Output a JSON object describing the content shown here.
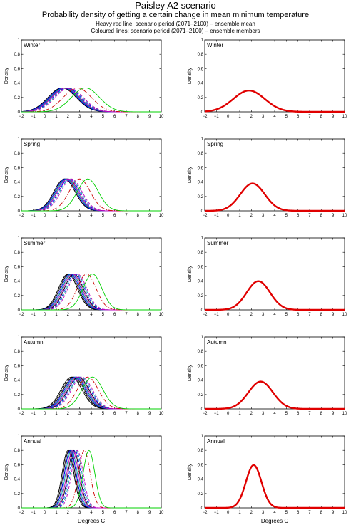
{
  "figure": {
    "title": "Paisley A2 scenario",
    "subtitle": "Probability density of getting a certain change in mean minimum temperature",
    "note_heavy": "Heavy red line: scenario period (2071–2100) – ensemble mean",
    "note_coloured": "Coloured lines: scenario period (2071–2100) – ensemble members"
  },
  "axes": {
    "xlabel": "Degrees C",
    "ylabel": "Density",
    "xlim": [
      -2,
      10
    ],
    "ylim": [
      0,
      1
    ],
    "xticks": [
      "−2",
      "−1",
      "0",
      "1",
      "2",
      "3",
      "4",
      "5",
      "6",
      "7",
      "8",
      "9",
      "10"
    ],
    "yticks": [
      "0",
      "0.2",
      "0.4",
      "0.6",
      "0.8",
      "1"
    ]
  },
  "chart_data": [
    {
      "type": "line",
      "panel": "members",
      "season": "Winter",
      "xlim": [
        -2,
        10
      ],
      "ylim": [
        0,
        1
      ],
      "series": [
        {
          "color": "#000000",
          "mean": 1.5,
          "sd": 1.2,
          "dash": ""
        },
        {
          "color": "#000000",
          "mean": 1.6,
          "sd": 1.2,
          "dash": ""
        },
        {
          "color": "#000000",
          "mean": 1.7,
          "sd": 1.2,
          "dash": ""
        },
        {
          "color": "#000000",
          "mean": 1.8,
          "sd": 1.2,
          "dash": ""
        },
        {
          "color": "#000000",
          "mean": 1.5,
          "sd": 1.2,
          "dash": "4,2"
        },
        {
          "color": "#0000ff",
          "mean": 1.6,
          "sd": 1.2,
          "dash": ""
        },
        {
          "color": "#0000ff",
          "mean": 1.9,
          "sd": 1.2,
          "dash": "4,2"
        },
        {
          "color": "#00a0a0",
          "mean": 1.7,
          "sd": 1.2,
          "dash": ""
        },
        {
          "color": "#00a0a0",
          "mean": 2.0,
          "sd": 1.2,
          "dash": "4,2"
        },
        {
          "color": "#c000c0",
          "mean": 1.8,
          "sd": 1.2,
          "dash": ""
        },
        {
          "color": "#c000c0",
          "mean": 2.1,
          "sd": 1.2,
          "dash": "4,2"
        },
        {
          "color": "#cc0000",
          "mean": 2.8,
          "sd": 1.2,
          "dash": "6,2,1,2"
        },
        {
          "color": "#00d000",
          "mean": 3.5,
          "sd": 1.2,
          "dash": ""
        }
      ]
    },
    {
      "type": "line",
      "panel": "mean",
      "season": "Winter",
      "xlim": [
        -2,
        10
      ],
      "ylim": [
        0,
        1
      ],
      "series": [
        {
          "color": "#e00000",
          "mean": 1.8,
          "sd": 1.35,
          "dash": ""
        }
      ]
    },
    {
      "type": "line",
      "panel": "members",
      "season": "Spring",
      "xlim": [
        -2,
        10
      ],
      "ylim": [
        0,
        1
      ],
      "series": [
        {
          "color": "#000000",
          "mean": 1.7,
          "sd": 0.9,
          "dash": ""
        },
        {
          "color": "#000000",
          "mean": 1.8,
          "sd": 0.9,
          "dash": ""
        },
        {
          "color": "#000000",
          "mean": 1.9,
          "sd": 0.9,
          "dash": ""
        },
        {
          "color": "#000000",
          "mean": 2.0,
          "sd": 0.9,
          "dash": ""
        },
        {
          "color": "#000000",
          "mean": 1.7,
          "sd": 0.9,
          "dash": "4,2"
        },
        {
          "color": "#0000ff",
          "mean": 1.8,
          "sd": 0.9,
          "dash": ""
        },
        {
          "color": "#0000ff",
          "mean": 2.1,
          "sd": 0.9,
          "dash": "4,2"
        },
        {
          "color": "#00a0a0",
          "mean": 1.9,
          "sd": 0.9,
          "dash": ""
        },
        {
          "color": "#00a0a0",
          "mean": 2.2,
          "sd": 0.9,
          "dash": "4,2"
        },
        {
          "color": "#c000c0",
          "mean": 2.0,
          "sd": 0.9,
          "dash": ""
        },
        {
          "color": "#c000c0",
          "mean": 2.3,
          "sd": 0.9,
          "dash": "4,2"
        },
        {
          "color": "#cc0000",
          "mean": 3.0,
          "sd": 0.9,
          "dash": "6,2,1,2"
        },
        {
          "color": "#00d000",
          "mean": 3.7,
          "sd": 0.9,
          "dash": ""
        }
      ]
    },
    {
      "type": "line",
      "panel": "mean",
      "season": "Spring",
      "xlim": [
        -2,
        10
      ],
      "ylim": [
        0,
        1
      ],
      "series": [
        {
          "color": "#e00000",
          "mean": 2.1,
          "sd": 1.05,
          "dash": ""
        }
      ]
    },
    {
      "type": "line",
      "panel": "members",
      "season": "Summer",
      "xlim": [
        -2,
        10
      ],
      "ylim": [
        0,
        1
      ],
      "series": [
        {
          "color": "#000000",
          "mean": 2.0,
          "sd": 0.8,
          "dash": ""
        },
        {
          "color": "#000000",
          "mean": 2.1,
          "sd": 0.8,
          "dash": ""
        },
        {
          "color": "#000000",
          "mean": 2.3,
          "sd": 0.8,
          "dash": ""
        },
        {
          "color": "#000000",
          "mean": 2.5,
          "sd": 0.8,
          "dash": ""
        },
        {
          "color": "#000000",
          "mean": 2.0,
          "sd": 0.8,
          "dash": "4,2"
        },
        {
          "color": "#0000ff",
          "mean": 2.2,
          "sd": 0.8,
          "dash": ""
        },
        {
          "color": "#0000ff",
          "mean": 2.6,
          "sd": 0.8,
          "dash": "4,2"
        },
        {
          "color": "#00a0a0",
          "mean": 2.3,
          "sd": 0.8,
          "dash": ""
        },
        {
          "color": "#00a0a0",
          "mean": 2.7,
          "sd": 0.8,
          "dash": "4,2"
        },
        {
          "color": "#c000c0",
          "mean": 2.4,
          "sd": 0.8,
          "dash": ""
        },
        {
          "color": "#c000c0",
          "mean": 2.8,
          "sd": 0.8,
          "dash": "4,2"
        },
        {
          "color": "#cc0000",
          "mean": 3.6,
          "sd": 0.8,
          "dash": "6,2,1,2"
        },
        {
          "color": "#00d000",
          "mean": 4.1,
          "sd": 0.8,
          "dash": ""
        }
      ]
    },
    {
      "type": "line",
      "panel": "mean",
      "season": "Summer",
      "xlim": [
        -2,
        10
      ],
      "ylim": [
        0,
        1
      ],
      "series": [
        {
          "color": "#e00000",
          "mean": 2.6,
          "sd": 1.0,
          "dash": ""
        }
      ]
    },
    {
      "type": "line",
      "panel": "members",
      "season": "Autumn",
      "xlim": [
        -2,
        10
      ],
      "ylim": [
        0,
        1
      ],
      "series": [
        {
          "color": "#000000",
          "mean": 2.3,
          "sd": 0.9,
          "dash": ""
        },
        {
          "color": "#000000",
          "mean": 2.5,
          "sd": 0.9,
          "dash": ""
        },
        {
          "color": "#000000",
          "mean": 2.7,
          "sd": 0.9,
          "dash": ""
        },
        {
          "color": "#000000",
          "mean": 2.9,
          "sd": 0.9,
          "dash": ""
        },
        {
          "color": "#000000",
          "mean": 2.4,
          "sd": 0.9,
          "dash": "4,2"
        },
        {
          "color": "#0000ff",
          "mean": 2.6,
          "sd": 0.9,
          "dash": ""
        },
        {
          "color": "#0000ff",
          "mean": 3.0,
          "sd": 0.9,
          "dash": "4,2"
        },
        {
          "color": "#00a0a0",
          "mean": 2.7,
          "sd": 0.9,
          "dash": ""
        },
        {
          "color": "#00a0a0",
          "mean": 3.1,
          "sd": 0.9,
          "dash": "4,2"
        },
        {
          "color": "#c000c0",
          "mean": 2.8,
          "sd": 0.9,
          "dash": ""
        },
        {
          "color": "#c000c0",
          "mean": 3.2,
          "sd": 0.9,
          "dash": "4,2"
        },
        {
          "color": "#cc0000",
          "mean": 3.7,
          "sd": 0.9,
          "dash": "6,2,1,2"
        },
        {
          "color": "#00d000",
          "mean": 4.1,
          "sd": 0.9,
          "dash": ""
        }
      ]
    },
    {
      "type": "line",
      "panel": "mean",
      "season": "Autumn",
      "xlim": [
        -2,
        10
      ],
      "ylim": [
        0,
        1
      ],
      "series": [
        {
          "color": "#e00000",
          "mean": 2.8,
          "sd": 1.05,
          "dash": ""
        }
      ]
    },
    {
      "type": "line",
      "panel": "members",
      "season": "Annual",
      "xlim": [
        -2,
        10
      ],
      "ylim": [
        0,
        1
      ],
      "series": [
        {
          "color": "#000000",
          "mean": 2.0,
          "sd": 0.5,
          "dash": ""
        },
        {
          "color": "#000000",
          "mean": 2.1,
          "sd": 0.5,
          "dash": ""
        },
        {
          "color": "#000000",
          "mean": 2.2,
          "sd": 0.5,
          "dash": ""
        },
        {
          "color": "#000000",
          "mean": 2.5,
          "sd": 0.5,
          "dash": ""
        },
        {
          "color": "#000000",
          "mean": 2.0,
          "sd": 0.5,
          "dash": "4,2"
        },
        {
          "color": "#0000ff",
          "mean": 2.2,
          "sd": 0.5,
          "dash": ""
        },
        {
          "color": "#0000ff",
          "mean": 2.6,
          "sd": 0.5,
          "dash": "4,2"
        },
        {
          "color": "#00a0a0",
          "mean": 2.3,
          "sd": 0.5,
          "dash": ""
        },
        {
          "color": "#00a0a0",
          "mean": 2.7,
          "sd": 0.5,
          "dash": "4,2"
        },
        {
          "color": "#c000c0",
          "mean": 2.4,
          "sd": 0.5,
          "dash": ""
        },
        {
          "color": "#c000c0",
          "mean": 2.8,
          "sd": 0.5,
          "dash": "4,2"
        },
        {
          "color": "#cc0000",
          "mean": 3.4,
          "sd": 0.5,
          "dash": "6,2,1,2"
        },
        {
          "color": "#00d000",
          "mean": 3.8,
          "sd": 0.5,
          "dash": ""
        }
      ]
    },
    {
      "type": "line",
      "panel": "mean",
      "season": "Annual",
      "xlim": [
        -2,
        10
      ],
      "ylim": [
        0,
        1
      ],
      "series": [
        {
          "color": "#e00000",
          "mean": 2.2,
          "sd": 0.67,
          "dash": ""
        }
      ]
    }
  ]
}
